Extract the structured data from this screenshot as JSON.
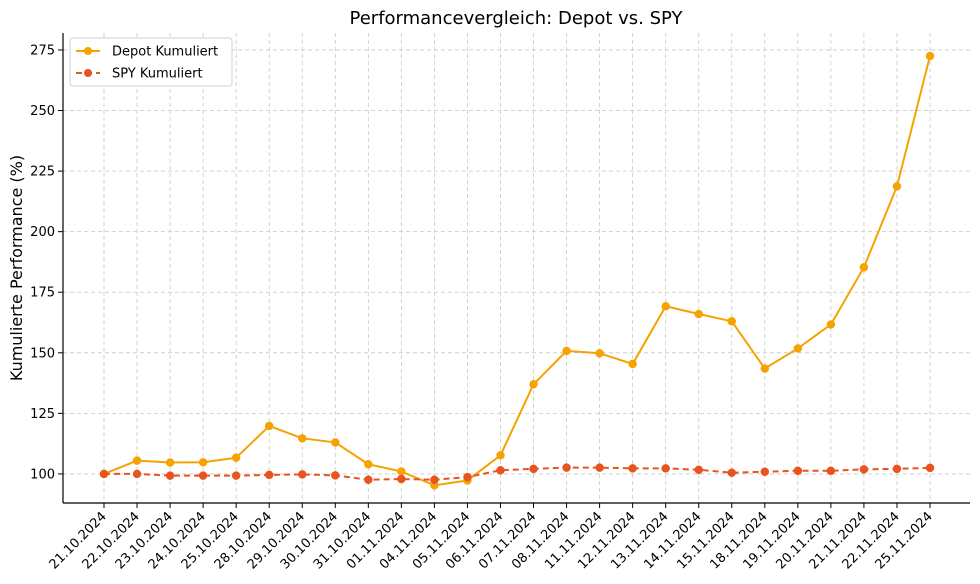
{
  "chart_data": {
    "type": "line",
    "title": "Performancevergleich: Depot vs. SPY",
    "xlabel": "",
    "ylabel": "Kumulierte Performance (%)",
    "ylim": [
      88,
      282
    ],
    "yticks": [
      100,
      125,
      150,
      175,
      200,
      225,
      250,
      275
    ],
    "grid": true,
    "legend_position": "top-left",
    "categories": [
      "21.10.2024",
      "22.10.2024",
      "23.10.2024",
      "24.10.2024",
      "25.10.2024",
      "28.10.2024",
      "29.10.2024",
      "30.10.2024",
      "31.10.2024",
      "01.11.2024",
      "04.11.2024",
      "05.11.2024",
      "06.11.2024",
      "07.11.2024",
      "08.11.2024",
      "11.11.2024",
      "12.11.2024",
      "13.11.2024",
      "14.11.2024",
      "15.11.2024",
      "18.11.2024",
      "19.11.2024",
      "20.11.2024",
      "21.11.2024",
      "22.11.2024",
      "25.11.2024"
    ],
    "series": [
      {
        "name": "Depot Kumuliert",
        "color": "#f5a300",
        "style": "solid",
        "values": [
          100,
          105.5,
          104.7,
          104.8,
          106.7,
          119.8,
          114.7,
          113,
          104,
          101,
          95.3,
          97.3,
          107.7,
          137,
          150.8,
          149.8,
          145.4,
          169.2,
          166,
          163,
          143.5,
          151.8,
          161.7,
          185.3,
          218.7,
          272.5
        ]
      },
      {
        "name": "SPY Kumuliert",
        "color": "#e8541f",
        "style": "dashed",
        "values": [
          100,
          100,
          99.3,
          99.3,
          99.3,
          99.6,
          99.8,
          99.4,
          97.6,
          97.9,
          97.6,
          98.7,
          101.5,
          102.1,
          102.6,
          102.6,
          102.3,
          102.3,
          101.7,
          100.5,
          100.9,
          101.3,
          101.3,
          101.9,
          102.1,
          102.5
        ]
      }
    ]
  }
}
